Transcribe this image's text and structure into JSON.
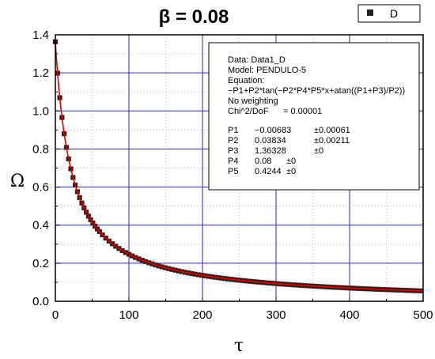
{
  "chart_data": {
    "type": "scatter",
    "title": "β = 0.08",
    "xlabel": "τ",
    "ylabel": "Ω",
    "xlim": [
      0,
      500
    ],
    "ylim": [
      0.0,
      1.4
    ],
    "x_ticks": [
      "0",
      "100",
      "200",
      "300",
      "400",
      "500"
    ],
    "y_ticks": [
      "0.0",
      "0.2",
      "0.4",
      "0.6",
      "0.8",
      "1.0",
      "1.2",
      "1.4"
    ],
    "grid": "on",
    "legend": {
      "placement": "top-right",
      "entries": [
        "D"
      ]
    },
    "series": [
      {
        "name": "D",
        "marker": "square",
        "color": "#000000",
        "x_range": [
          0,
          500
        ],
        "sample_points": [
          {
            "x": 0,
            "y": 1.363
          },
          {
            "x": 5,
            "y": 1.18
          },
          {
            "x": 10,
            "y": 1.04
          },
          {
            "x": 20,
            "y": 0.8
          },
          {
            "x": 30,
            "y": 0.62
          },
          {
            "x": 50,
            "y": 0.42
          },
          {
            "x": 100,
            "y": 0.24
          },
          {
            "x": 200,
            "y": 0.13
          },
          {
            "x": 300,
            "y": 0.09
          },
          {
            "x": 400,
            "y": 0.07
          },
          {
            "x": 500,
            "y": 0.055
          }
        ]
      }
    ],
    "fit": {
      "color": "#dd0000",
      "params": {
        "P1": -0.00683,
        "P2": 0.03834,
        "P3": 1.36328,
        "P4": 0.08,
        "P5": 0.4244
      }
    },
    "annotation": {
      "data_line": "Data: Data1_D",
      "model_line": "Model: PENDULO-5",
      "equation_label": "Equation:",
      "equation": "−P1+P2*tan(−P2*P4*P5*x+atan((P1+P3)/P2))",
      "weighting": "No weighting",
      "chi_label": "Chi^2/DoF",
      "chi_value": "= 0.00001",
      "params": [
        {
          "name": "P1",
          "value": "−0.00683",
          "error": "±0.00061"
        },
        {
          "name": "P2",
          "value": "0.03834",
          "error": "±0.00211"
        },
        {
          "name": "P3",
          "value": "1.36328",
          "error": "±0"
        },
        {
          "name": "P4",
          "value": "0.08",
          "error": "±0"
        },
        {
          "name": "P5",
          "value": "0.4244",
          "error": "±0"
        }
      ]
    }
  }
}
